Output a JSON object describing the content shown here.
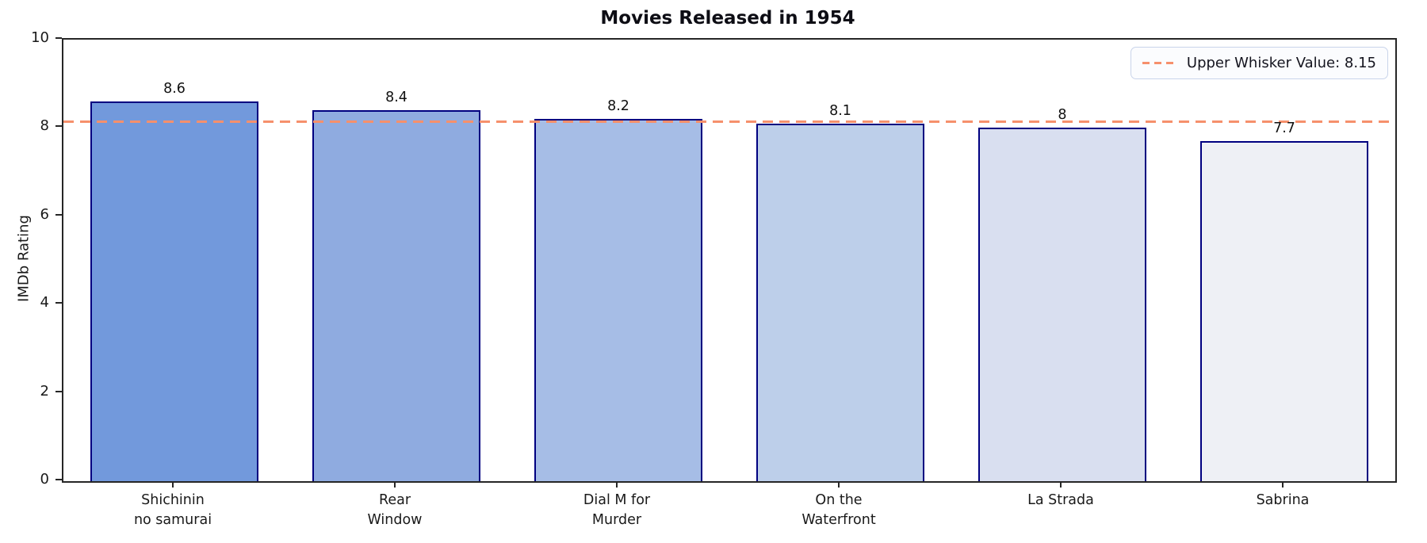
{
  "title": "Movies Released in 1954",
  "ylabel": "IMDb Rating",
  "legend": {
    "label": "Upper Whisker Value: 8.15"
  },
  "chart_data": {
    "type": "bar",
    "title": "Movies Released in 1954",
    "xlabel": "",
    "ylabel": "IMDb Rating",
    "ylim": [
      0,
      10
    ],
    "yticks": [
      0,
      2,
      4,
      6,
      8,
      10
    ],
    "categories": [
      "Shichinin\nno samurai",
      "Rear\nWindow",
      "Dial M for\nMurder",
      "On the\nWaterfront",
      "La Strada",
      "Sabrina"
    ],
    "values": [
      8.6,
      8.4,
      8.2,
      8.1,
      8,
      7.7
    ],
    "value_labels": [
      "8.6",
      "8.4",
      "8.2",
      "8.1",
      "8",
      "7.7"
    ],
    "bar_colors": [
      "#7299dc",
      "#8fabe0",
      "#a6bde6",
      "#bdcfea",
      "#d9dff0",
      "#eef0f5"
    ],
    "bar_edge_color": "#000080",
    "reference_line": {
      "value": 8.15,
      "color": "#f6906c",
      "style": "dashed",
      "label": "Upper Whisker Value: 8.15"
    },
    "legend_position": "upper right",
    "grid": false
  }
}
